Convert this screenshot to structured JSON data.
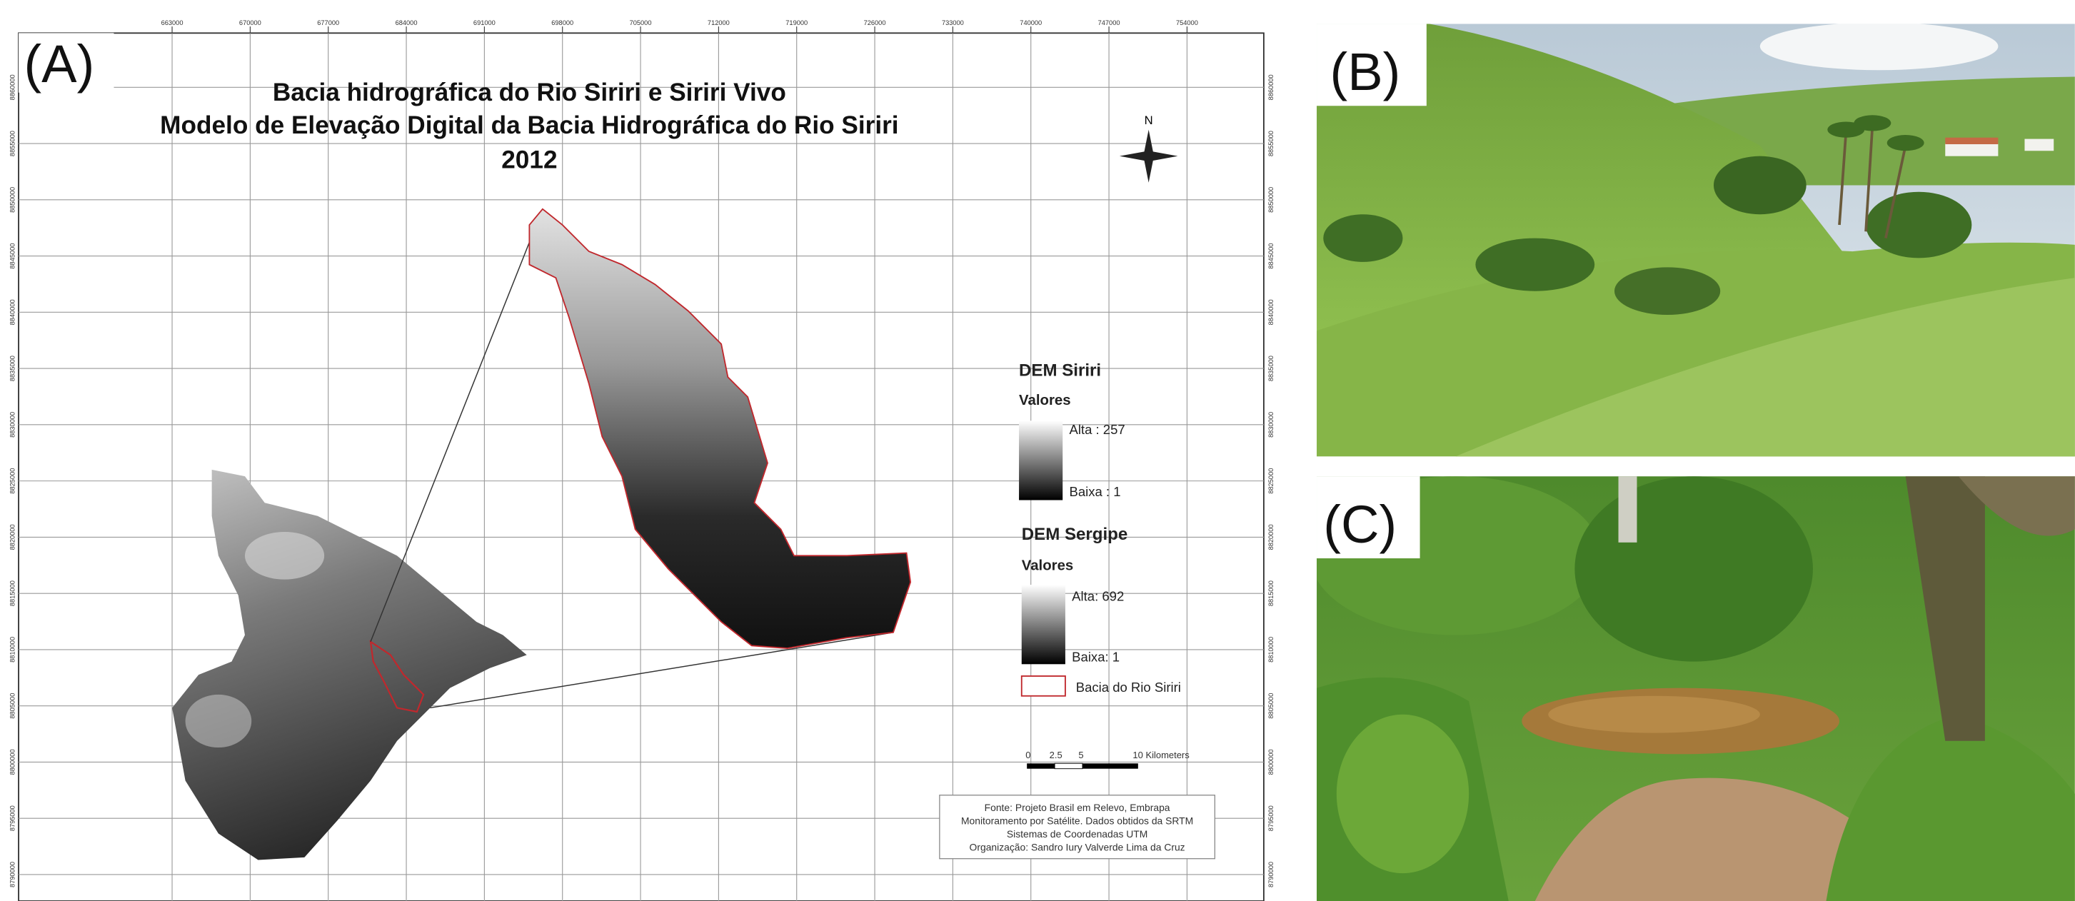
{
  "panels": {
    "a": {
      "label": "(A)",
      "title": [
        "Bacia hidrográfica do Rio Siriri e Siriri Vivo",
        "Modelo de Elevação Digital da Bacia Hidrográfica do Rio Siriri",
        "2012"
      ],
      "north": "N",
      "x_ticks": [
        "663000",
        "670000",
        "677000",
        "684000",
        "691000",
        "698000",
        "705000",
        "712000",
        "719000",
        "726000",
        "733000",
        "740000",
        "747000",
        "754000"
      ],
      "y_ticks": [
        "8860000",
        "8855000",
        "8850000",
        "8845000",
        "8840000",
        "8835000",
        "8830000",
        "8825000",
        "8820000",
        "8815000",
        "8810000",
        "8805000",
        "8800000",
        "8795000",
        "8790000"
      ],
      "legend": {
        "siriri": {
          "title": "DEM Siriri",
          "subtitle": "Valores",
          "high": "Alta : 257",
          "low": "Baixa : 1"
        },
        "sergipe": {
          "title": "DEM Sergipe",
          "subtitle": "Valores",
          "high": "Alta: 692",
          "low": "Baixa: 1"
        },
        "basin": "Bacia do Rio Siriri"
      },
      "scale_bar": [
        "0",
        "2.5",
        "5",
        "10 Kilometers"
      ],
      "source": [
        "Fonte: Projeto Brasil em Relevo, Embrapa",
        "Monitoramento por Satélite. Dados obtidos da SRTM",
        "Sistemas de Coordenadas UTM",
        "Organização: Sandro Iury Valverde Lima da Cruz"
      ]
    },
    "b": {
      "label": "(B)"
    },
    "c": {
      "label": "(C)"
    }
  }
}
